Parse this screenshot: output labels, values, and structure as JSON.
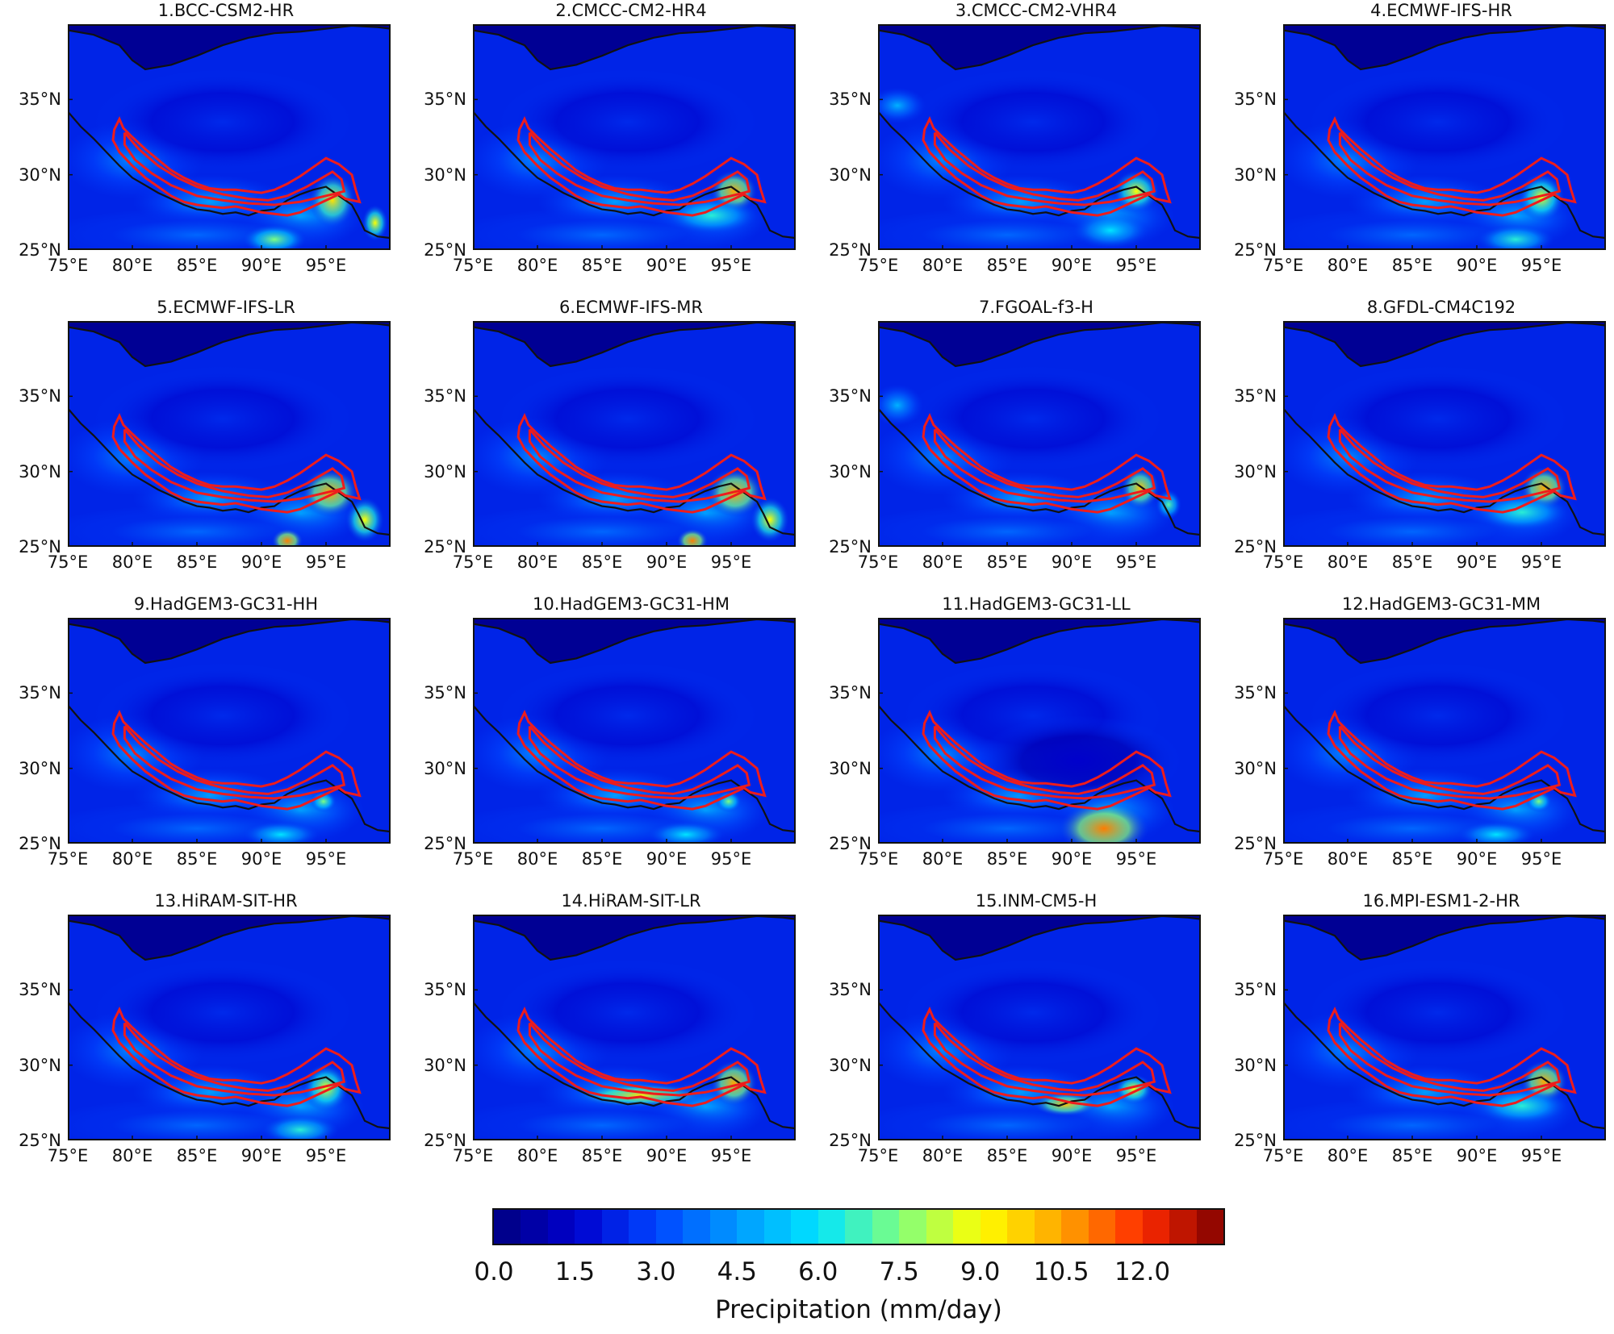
{
  "figure": {
    "panels": [
      {
        "title": "1.BCC-CSM2-HR",
        "pattern": "south-rain"
      },
      {
        "title": "2.CMCC-CM2-HR4",
        "pattern": "east-peak"
      },
      {
        "title": "3.CMCC-CM2-VHR4",
        "pattern": "west-wet"
      },
      {
        "title": "4.ECMWF-IFS-HR",
        "pattern": "moderate"
      },
      {
        "title": "5.ECMWF-IFS-LR",
        "pattern": "east-peak-south"
      },
      {
        "title": "6.ECMWF-IFS-MR",
        "pattern": "east-peak-south"
      },
      {
        "title": "7.FGOAL-f3-H",
        "pattern": "dry-west-wet"
      },
      {
        "title": "8.GFDL-CM4C192",
        "pattern": "east-peak"
      },
      {
        "title": "9.HadGEM3-GC31-HH",
        "pattern": "dry"
      },
      {
        "title": "10.HadGEM3-GC31-HM",
        "pattern": "dry"
      },
      {
        "title": "11.HadGEM3-GC31-LL",
        "pattern": "south-blob"
      },
      {
        "title": "12.HadGEM3-GC31-MM",
        "pattern": "dry"
      },
      {
        "title": "13.HiRAM-SIT-HR",
        "pattern": "moderate"
      },
      {
        "title": "14.HiRAM-SIT-LR",
        "pattern": "band-wet"
      },
      {
        "title": "15.INM-CM5-H",
        "pattern": "band-mid"
      },
      {
        "title": "16.MPI-ESM1-2-HR",
        "pattern": "east-peak"
      }
    ],
    "lat_ticks": [
      "35°N",
      "30°N",
      "25°N"
    ],
    "lon_ticks": [
      "75°E",
      "80°E",
      "85°E",
      "90°E",
      "95°E"
    ],
    "lat_values": [
      35,
      30,
      25
    ],
    "lon_values": [
      75,
      80,
      85,
      90,
      95
    ],
    "extent": {
      "lon": [
        75,
        100
      ],
      "lat": [
        25,
        40
      ]
    }
  },
  "colorbar": {
    "ticks": [
      "0.0",
      "1.5",
      "3.0",
      "4.5",
      "6.0",
      "7.5",
      "9.0",
      "10.5",
      "12.0"
    ],
    "tick_values": [
      0,
      1.5,
      3,
      4.5,
      6,
      7.5,
      9,
      10.5,
      12
    ],
    "range": [
      0,
      13.5
    ],
    "levels": 27,
    "label": "Precipitation (mm/day)",
    "colors": [
      "#00007f",
      "#0000cc",
      "#0044ff",
      "#0099ff",
      "#00e5ff",
      "#7fff7f",
      "#ffff00",
      "#ffa500",
      "#ff2a00",
      "#7f0000"
    ]
  }
}
